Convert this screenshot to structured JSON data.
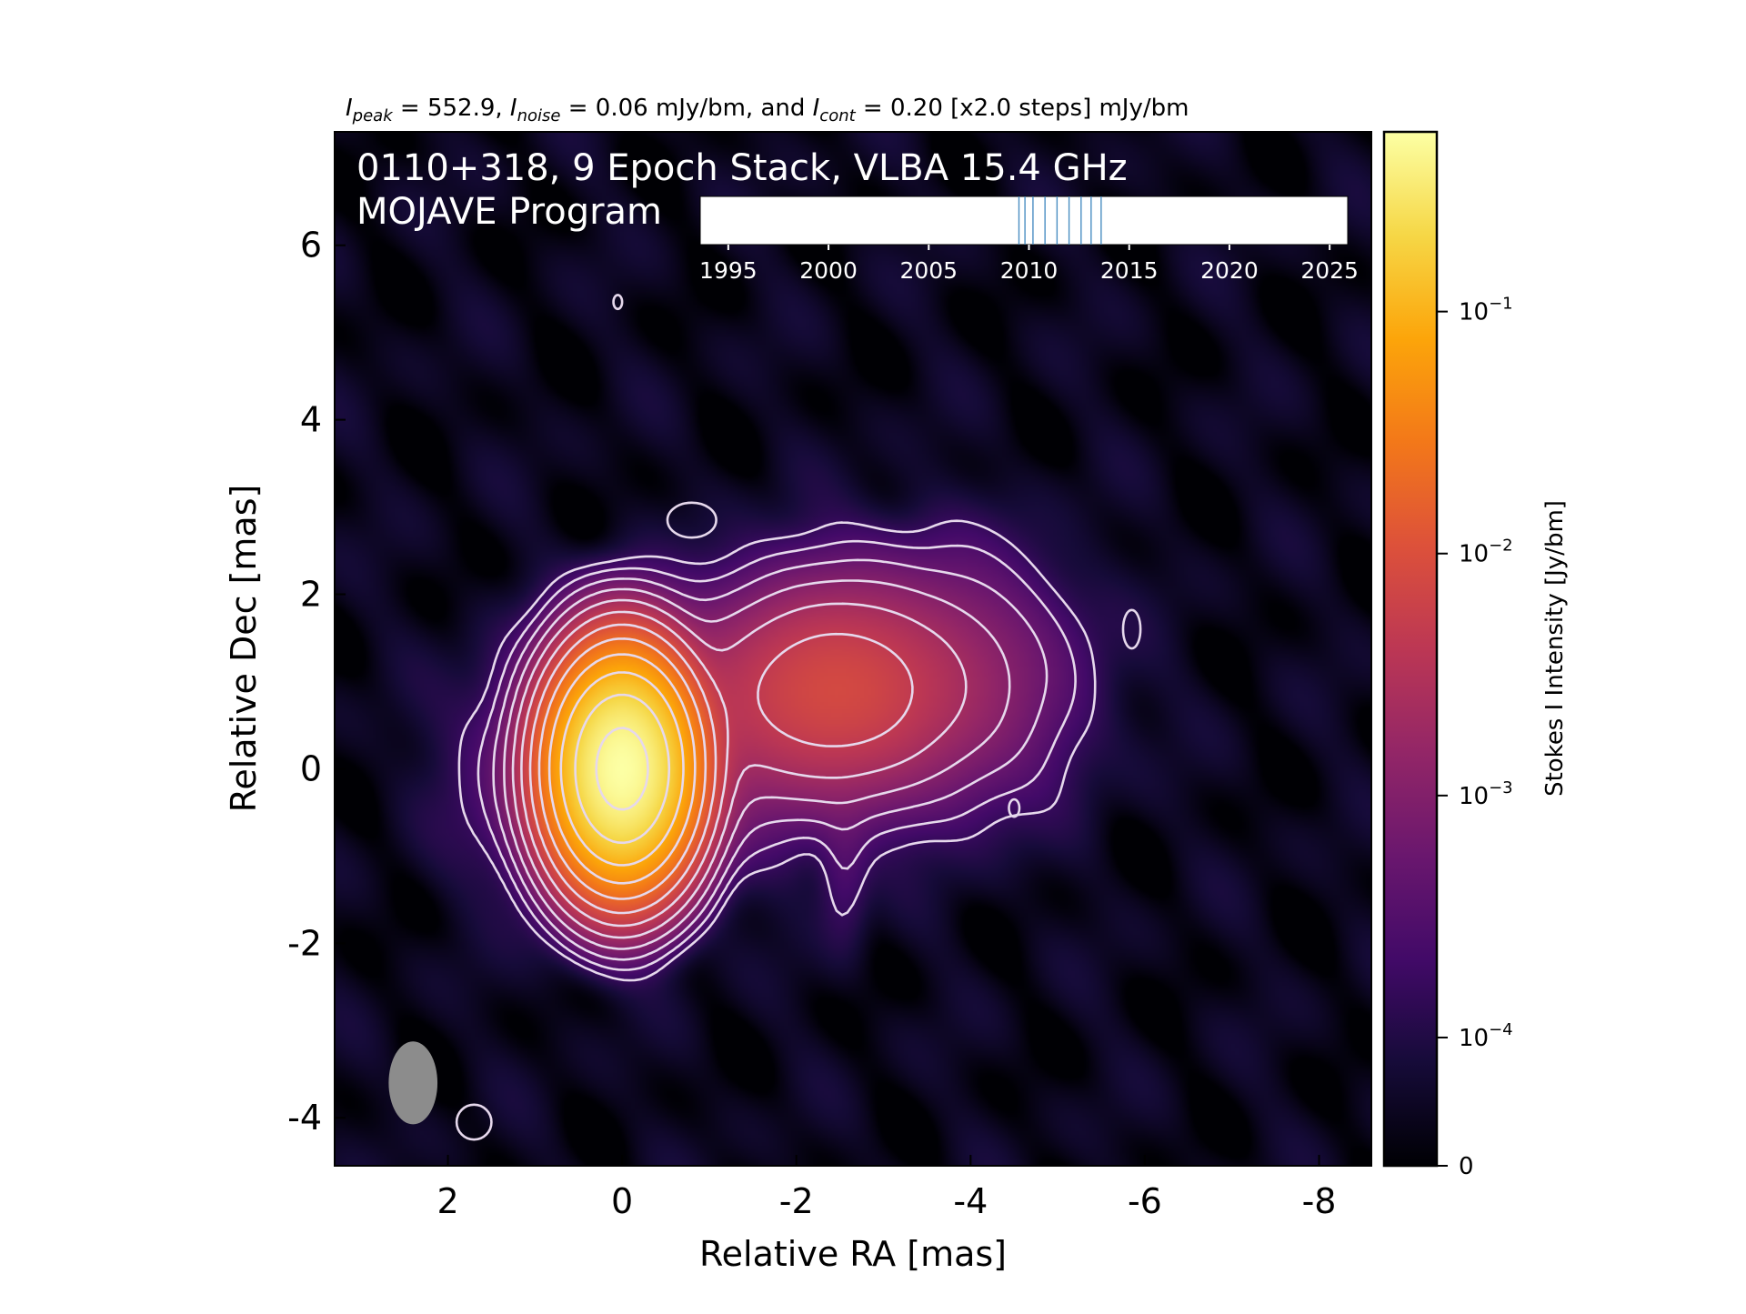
{
  "chart_data": {
    "type": "heatmap",
    "title_parts": [
      {
        "name": "I",
        "sub": "peak",
        "text": " = 552.9, "
      },
      {
        "name": "I",
        "sub": "noise",
        "text": " = 0.06 mJy/bm, and "
      },
      {
        "name": "I",
        "sub": "cont",
        "text": " = 0.20 [x2.0 steps] mJy/bm"
      }
    ],
    "source_label": "0110+318, 9 Epoch Stack, VLBA 15.4 GHz",
    "program_label": "MOJAVE Program",
    "xlabel": "Relative RA [mas]",
    "ylabel": "Relative Dec [mas]",
    "xlim": [
      3.3,
      -8.6
    ],
    "ylim": [
      -4.55,
      7.3
    ],
    "x_ticks": [
      2,
      0,
      -2,
      -4,
      -6,
      -8
    ],
    "y_ticks": [
      -4,
      -2,
      0,
      2,
      4,
      6
    ],
    "colorbar": {
      "label": "Stokes I Intensity [Jy/bm]",
      "scale": "log",
      "colormap": "inferno",
      "ticks": [
        {
          "value": 0.1,
          "base": "10",
          "exp": "−1"
        },
        {
          "value": 0.01,
          "base": "10",
          "exp": "−2"
        },
        {
          "value": 0.001,
          "base": "10",
          "exp": "−3"
        },
        {
          "value": 0.0001,
          "base": "10",
          "exp": "−4"
        },
        {
          "value": 0,
          "base": "0",
          "exp": ""
        }
      ],
      "range_jy": [
        6e-05,
        0.5529
      ]
    },
    "components": [
      {
        "name": "core",
        "ra": 0.0,
        "dec": 0.0,
        "peak_jy": 0.5529,
        "sigma_ra": 0.38,
        "sigma_dec": 0.6
      },
      {
        "name": "jet",
        "ra": -2.45,
        "dec": 0.9,
        "peak_jy": 0.0085,
        "sigma_ra": 0.75,
        "sigma_dec": 0.6
      }
    ],
    "contour_levels_mjy": [
      0.2,
      0.4,
      0.8,
      1.6,
      3.2,
      6.4,
      12.8,
      25.6,
      51.2,
      102.4,
      204.8,
      409.6
    ],
    "beam": {
      "ra": 2.4,
      "dec": -3.6,
      "major_mas": 0.95,
      "minor_mas": 0.56,
      "pa_deg": 0
    },
    "timeline": {
      "ticks": [
        1995,
        2000,
        2005,
        2010,
        2015,
        2020,
        2025
      ],
      "range": [
        1993.6,
        2025.9
      ],
      "epochs": [
        2009.5,
        2009.8,
        2010.2,
        2010.8,
        2011.4,
        2012.0,
        2012.6,
        2013.1,
        2013.6
      ]
    }
  },
  "colors": {
    "contour": "#e6d8ec",
    "beam": "#8c8c8c",
    "epoch_line": "#4a8ec2",
    "text_on_image": "#ffffff"
  }
}
